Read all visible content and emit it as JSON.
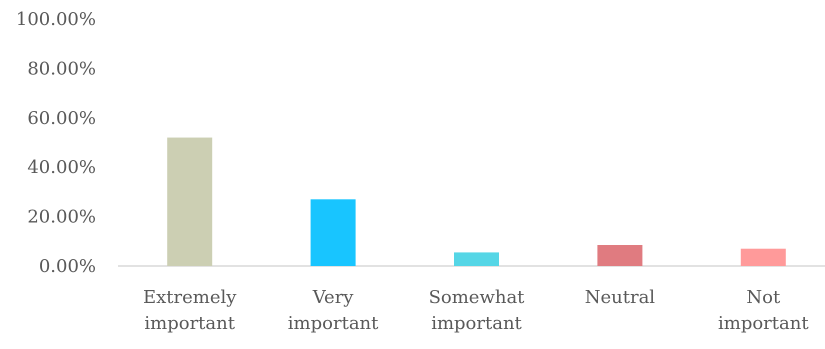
{
  "chart_data": {
    "type": "bar",
    "categories": [
      [
        "Extremely",
        "important"
      ],
      [
        "Very",
        "important"
      ],
      [
        "Somewhat",
        "important"
      ],
      [
        "Neutral"
      ],
      [
        "Not",
        "important"
      ]
    ],
    "values": [
      52.0,
      27.0,
      5.5,
      8.5,
      7.0
    ],
    "colors": [
      "#cccfb3",
      "#18c5ff",
      "#55d6e6",
      "#e07b80",
      "#ff9a9a"
    ],
    "yticks": [
      "0.00%",
      "20.00%",
      "40.00%",
      "60.00%",
      "80.00%",
      "100.00%"
    ],
    "ylim": [
      0,
      100
    ],
    "grid": false,
    "title": "",
    "xlabel": "",
    "ylabel": ""
  }
}
